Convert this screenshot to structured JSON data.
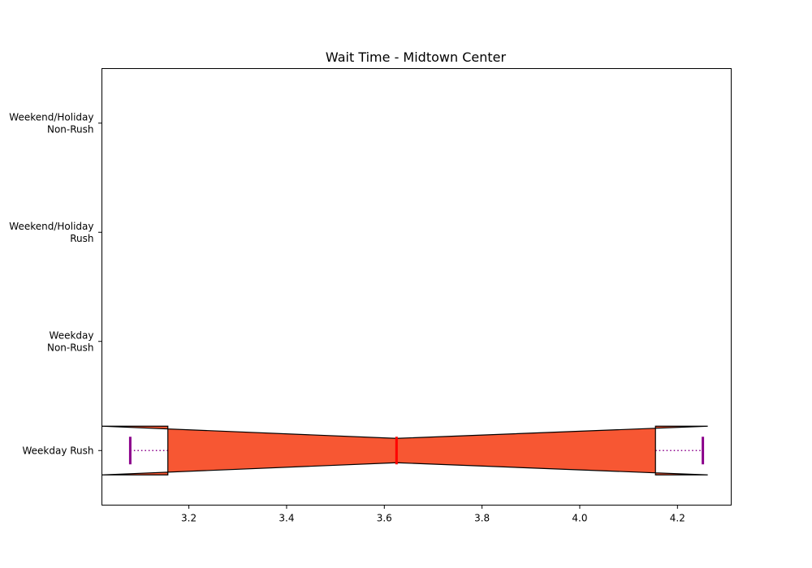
{
  "chart_data": {
    "type": "boxplot",
    "orientation": "horizontal",
    "notched": true,
    "title": "Wait Time - Midtown Center",
    "xlabel": "",
    "ylabel": "",
    "xlim": [
      3.022,
      4.31
    ],
    "xticks": [
      3.2,
      3.4,
      3.6,
      3.8,
      4.0,
      4.2
    ],
    "xtick_labels": [
      "3.2",
      "3.4",
      "3.6",
      "3.8",
      "4.0",
      "4.2"
    ],
    "categories": [
      [
        "Weekday Rush"
      ],
      [
        "Weekday",
        "Non-Rush"
      ],
      [
        "Weekend/Holiday",
        "Rush"
      ],
      [
        "Weekend/Holiday",
        "Non-Rush"
      ]
    ],
    "boxes": [
      {
        "category_index": 0,
        "whisker_low": 3.08,
        "q1": 3.157,
        "median": 3.625,
        "q3": 4.155,
        "whisker_high": 4.252,
        "notch_low": 3.022,
        "notch_high": 4.262
      }
    ],
    "grid": false,
    "legend": "none",
    "colors": {
      "box_fill": "#f75733",
      "box_edge": "#000000",
      "median": "#ff0000",
      "whisker": "#8b008b"
    }
  }
}
